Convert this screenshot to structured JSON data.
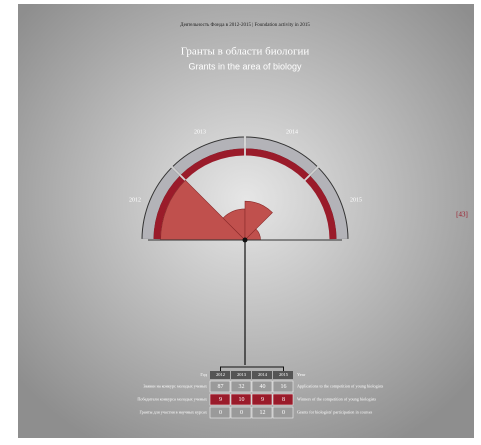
{
  "header": "Деятельность Фонда в 2012-2015 | Foundation activity in 2015",
  "title": "Гранты в области биологии",
  "subtitle": "Grants in the area of biology",
  "page_number": "[43]",
  "years": [
    "2012",
    "2013",
    "2014",
    "2015"
  ],
  "table": {
    "header": {
      "left": "Год",
      "right": "Year"
    },
    "rows": [
      {
        "label": "Заявки на конкурс молодых ученых",
        "values": [
          87,
          32,
          40,
          16
        ],
        "label_en": "Applications to the competition of young biologists"
      },
      {
        "label": "Победители конкурса молодых ученых",
        "values": [
          9,
          10,
          9,
          8
        ],
        "label_en": "Winners of the competition of young biologists"
      },
      {
        "label": "Гранты для участия в научных курсах",
        "values": [
          0,
          0,
          12,
          0
        ],
        "label_en": "Grants for biologists' participation in courses"
      }
    ]
  }
}
